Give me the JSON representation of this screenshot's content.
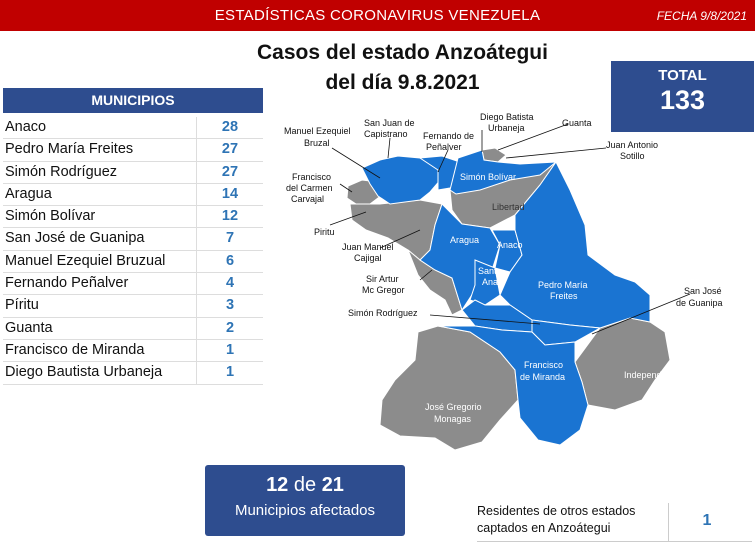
{
  "header": {
    "title": "ESTADÍSTICAS CORONAVIRUS VENEZUELA",
    "date": "FECHA 9/8/2021"
  },
  "page_title": {
    "line1": "Casos del estado Anzoátegui",
    "line2": "del día 9.8.2021"
  },
  "total": {
    "label": "TOTAL",
    "value": "133"
  },
  "municipios": {
    "header": "MUNICIPIOS",
    "rows": [
      {
        "name": "Anaco",
        "cases": "28"
      },
      {
        "name": "Pedro María Freites",
        "cases": "27"
      },
      {
        "name": "Simón Rodríguez",
        "cases": "27"
      },
      {
        "name": "Aragua",
        "cases": "14"
      },
      {
        "name": "Simón Bolívar",
        "cases": "12"
      },
      {
        "name": "San José de Guanipa",
        "cases": "7"
      },
      {
        "name": "Manuel Ezequiel Bruzual",
        "cases": "6"
      },
      {
        "name": "Fernando Peñalver",
        "cases": "4"
      },
      {
        "name": "Píritu",
        "cases": "3"
      },
      {
        "name": "Guanta",
        "cases": "2"
      },
      {
        "name": "Francisco de Miranda",
        "cases": "1"
      },
      {
        "name": "Diego Bautista Urbaneja",
        "cases": "1"
      }
    ]
  },
  "map": {
    "colors": {
      "affected": "#1a74d2",
      "unaffected": "#8c8c8c",
      "border": "#ffffff"
    },
    "labels": {
      "manuel_ezequiel": [
        "Manuel Ezequiel",
        "Bruzal"
      ],
      "san_juan": [
        "San Juan de",
        "Capistrano"
      ],
      "diego": [
        "Diego Batista",
        "Urbaneja"
      ],
      "guanta": "Guanta",
      "fernando": [
        "Fernando de",
        "Peñalver"
      ],
      "juan_antonio": [
        "Juan Antonio",
        "Sotillo"
      ],
      "francisco_carmen": [
        "Francisco",
        "del Carmen",
        "Carvajal"
      ],
      "simon_bolivar": "Simón Bolívar",
      "libertad": "Libertad",
      "piritu": "Piritu",
      "juan_manuel": [
        "Juan Manuel",
        "Cajigal"
      ],
      "aragua": "Aragua",
      "anaco": "Anaco",
      "santa_ana": [
        "Santa",
        "Ana"
      ],
      "sir_artur": [
        "Sir Artur",
        "Mc Gregor"
      ],
      "pedro_maria": [
        "Pedro María",
        "Freites"
      ],
      "san_jose": [
        "San José",
        "de Guanipa"
      ],
      "simon_rodriguez": "Simón Rodríguez",
      "independencia": "Independencia",
      "francisco_miranda": [
        "Francisco",
        "de Miranda"
      ],
      "jose_gregorio": [
        "José Gregorio",
        "Monagas"
      ]
    }
  },
  "affected": {
    "count": "12",
    "of": "de",
    "total": "21",
    "label": "Municipios afectados"
  },
  "residents": {
    "line1": "Residentes de otros estados",
    "line2": "captados en Anzoátegui",
    "value": "1"
  }
}
